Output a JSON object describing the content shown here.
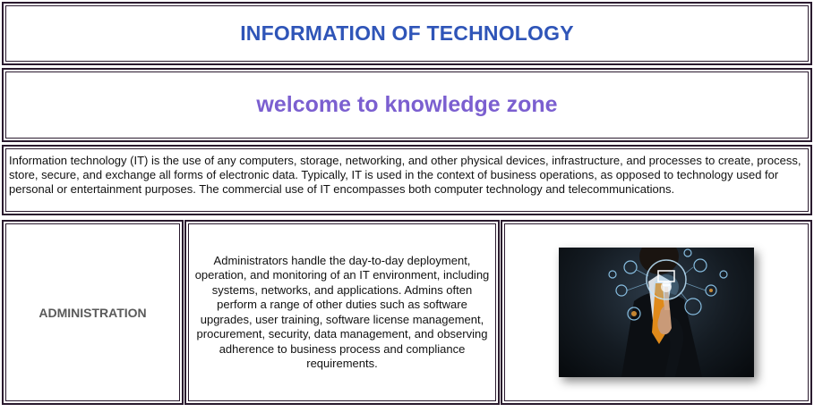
{
  "header": {
    "title": "INFORMATION OF TECHNOLOGY"
  },
  "banner": {
    "welcome": "welcome to knowledge zone"
  },
  "intro": {
    "text": "Information technology (IT) is the use of any computers, storage, networking, and other physical devices, infrastructure, and processes to create, process, store, secure, and exchange all forms of electronic data. Typically, IT is used in the context of business operations, as opposed to technology used for personal or entertainment purposes. The commercial use of IT encompasses both computer technology and telecommunications."
  },
  "section": {
    "label": "ADMINISTRATION",
    "description": "Administrators handle the day-to-day deployment, operation, and monitoring of an IT environment, including systems, networks, and applications. Admins often perform a range of other duties such as software upgrades, user training, software license management, procurement, security, data management, and observing adherence to business process and compliance requirements.",
    "image_icon": "businessman-touching-digital-interface-icon"
  },
  "colors": {
    "title": "#2f55b8",
    "welcome": "#7b5fd0",
    "border": "#2a1a2e",
    "label": "#5a5a5a"
  }
}
